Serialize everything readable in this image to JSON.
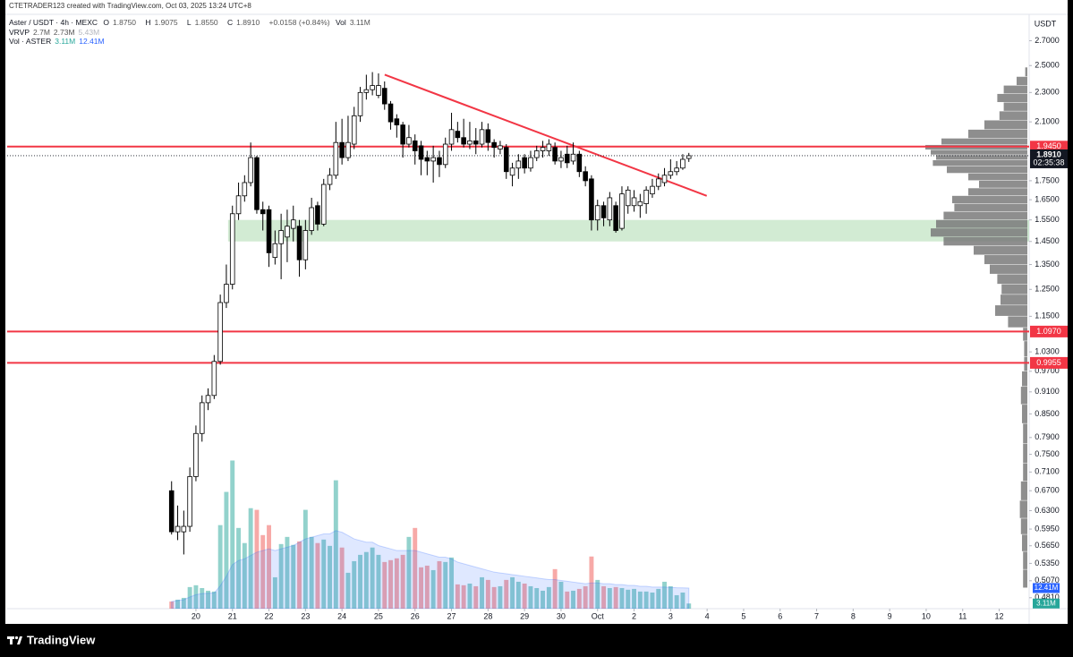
{
  "header": {
    "watermark": "CTETRADER123 created with TradingView.com, Oct 03, 2025 13:24 UTC+8",
    "symbol": "Aster / USDT · 4h · MEXC",
    "ohlc": [
      {
        "key": "O",
        "value": "1.8750"
      },
      {
        "key": "H",
        "value": "1.9075"
      },
      {
        "key": "L",
        "value": "1.8550"
      },
      {
        "key": "C",
        "value": "1.8910"
      }
    ],
    "change": "+0.0158 (+0.84%)",
    "vol_key": "Vol",
    "vol_value": "3.11M",
    "vrvp": {
      "name": "VRVP",
      "values": [
        "2.7M",
        "2.73M",
        "5.43M"
      ]
    },
    "vol_indicator": {
      "name": "Vol · ASTER",
      "values": [
        "3.11M",
        "12.41M"
      ]
    }
  },
  "footer": {
    "brand": "TradingView"
  },
  "chart_data": {
    "type": "candlestick",
    "price_unit": "USDT",
    "log_scale": true,
    "grid": false,
    "xlim": [
      14.83,
      42.82
    ],
    "ylim": [
      0.465,
      2.93
    ],
    "xticks": [
      20,
      21,
      22,
      23,
      24,
      25,
      26,
      27,
      28,
      29,
      30,
      {
        "value": 31,
        "label": "Oct"
      },
      {
        "value": 32,
        "label": "2"
      },
      {
        "value": 33,
        "label": "3"
      },
      {
        "value": 34,
        "label": "4"
      },
      {
        "value": 35,
        "label": "5"
      },
      {
        "value": 36,
        "label": "6"
      },
      {
        "value": 37,
        "label": "7"
      },
      {
        "value": 38,
        "label": "8"
      },
      {
        "value": 39,
        "label": "9"
      },
      {
        "value": 40,
        "label": "10"
      },
      {
        "value": 41,
        "label": "11"
      },
      {
        "value": 42,
        "label": "12"
      }
    ],
    "yticks": [
      {
        "value": 2.7,
        "label": "2.7000"
      },
      {
        "value": 2.5,
        "label": "2.5000"
      },
      {
        "value": 2.3,
        "label": "2.3000"
      },
      {
        "value": 2.1,
        "label": "2.1000"
      },
      {
        "value": 1.75,
        "label": "1.7500"
      },
      {
        "value": 1.65,
        "label": "1.6500"
      },
      {
        "value": 1.55,
        "label": "1.5500"
      },
      {
        "value": 1.45,
        "label": "1.4500"
      },
      {
        "value": 1.35,
        "label": "1.3500"
      },
      {
        "value": 1.25,
        "label": "1.2500"
      },
      {
        "value": 1.15,
        "label": "1.1500"
      },
      {
        "value": 1.03,
        "label": "1.0300"
      },
      {
        "value": 0.97,
        "label": "0.9700"
      },
      {
        "value": 0.91,
        "label": "0.9100"
      },
      {
        "value": 0.85,
        "label": "0.8500"
      },
      {
        "value": 0.79,
        "label": "0.7900"
      },
      {
        "value": 0.75,
        "label": "0.7500"
      },
      {
        "value": 0.71,
        "label": "0.7100"
      },
      {
        "value": 0.67,
        "label": "0.6700"
      },
      {
        "value": 0.63,
        "label": "0.6300"
      },
      {
        "value": 0.595,
        "label": "0.5950"
      },
      {
        "value": 0.565,
        "label": "0.5650"
      },
      {
        "value": 0.535,
        "label": "0.5350"
      },
      {
        "value": 0.507,
        "label": "0.5070"
      },
      {
        "value": 0.481,
        "label": "0.4810"
      }
    ],
    "up_color": "#ffffff",
    "down_color": "#000000",
    "wick_color": "#000000",
    "x": [
      19.333,
      19.5,
      19.667,
      19.833,
      20,
      20.167,
      20.333,
      20.5,
      20.667,
      20.833,
      21,
      21.167,
      21.333,
      21.5,
      21.667,
      21.833,
      22,
      22.167,
      22.333,
      22.5,
      22.667,
      22.833,
      23,
      23.167,
      23.333,
      23.5,
      23.667,
      23.833,
      24,
      24.167,
      24.333,
      24.5,
      24.667,
      24.833,
      25,
      25.167,
      25.333,
      25.5,
      25.667,
      25.833,
      26,
      26.167,
      26.333,
      26.5,
      26.667,
      26.833,
      27,
      27.167,
      27.333,
      27.5,
      27.667,
      27.833,
      28,
      28.167,
      28.333,
      28.5,
      28.667,
      28.833,
      29,
      29.167,
      29.333,
      29.5,
      29.667,
      29.833,
      30,
      30.167,
      30.333,
      30.5,
      30.667,
      30.833,
      31,
      31.167,
      31.333,
      31.5,
      31.667,
      31.833,
      32,
      32.167,
      32.333,
      32.5,
      32.667,
      32.833,
      33,
      33.167,
      33.333,
      33.5
    ],
    "open": [
      0.67,
      0.59,
      0.59,
      0.6,
      0.7,
      0.8,
      0.88,
      0.9,
      1.0,
      1.2,
      1.27,
      1.58,
      1.67,
      1.74,
      1.88,
      1.6,
      1.6,
      1.38,
      1.44,
      1.47,
      1.51,
      1.52,
      1.37,
      1.5,
      1.62,
      1.53,
      1.73,
      1.78,
      1.97,
      1.88,
      1.96,
      2.14,
      2.3,
      2.32,
      2.28,
      2.33,
      2.22,
      2.12,
      2.08,
      1.96,
      1.98,
      1.95,
      1.88,
      1.86,
      1.88,
      1.84,
      1.96,
      2.04,
      2.0,
      1.96,
      1.98,
      1.96,
      2.05,
      1.97,
      1.93,
      1.94,
      1.78,
      1.82,
      1.88,
      1.82,
      1.88,
      1.92,
      1.92,
      1.94,
      1.86,
      1.9,
      1.86,
      1.9,
      1.8,
      1.76,
      1.55,
      1.62,
      1.55,
      1.62,
      1.51,
      1.62,
      1.62,
      1.62,
      1.63,
      1.68,
      1.72,
      1.74,
      1.78,
      1.8,
      1.82,
      1.875
    ],
    "high": [
      0.69,
      0.64,
      0.63,
      0.72,
      0.82,
      0.9,
      0.92,
      1.02,
      1.23,
      1.35,
      1.62,
      1.74,
      1.78,
      1.97,
      1.89,
      1.64,
      1.62,
      1.5,
      1.58,
      1.6,
      1.62,
      1.55,
      1.55,
      1.66,
      1.64,
      1.76,
      1.82,
      2.1,
      2.12,
      2.14,
      2.2,
      2.34,
      2.43,
      2.45,
      2.44,
      2.38,
      2.24,
      2.15,
      2.1,
      2.08,
      2.02,
      1.98,
      1.92,
      1.95,
      1.92,
      2.0,
      2.16,
      2.1,
      2.12,
      2.1,
      2.06,
      2.1,
      2.09,
      1.99,
      1.98,
      1.96,
      1.85,
      1.9,
      1.9,
      1.92,
      1.95,
      1.98,
      1.99,
      1.97,
      1.92,
      1.95,
      1.97,
      1.92,
      1.83,
      1.78,
      1.65,
      1.64,
      1.69,
      1.64,
      1.72,
      1.72,
      1.7,
      1.68,
      1.72,
      1.76,
      1.79,
      1.82,
      1.87,
      1.86,
      1.9,
      1.9075
    ],
    "low": [
      0.585,
      0.575,
      0.55,
      0.59,
      0.69,
      0.78,
      0.86,
      0.89,
      0.99,
      1.18,
      1.25,
      1.55,
      1.64,
      1.72,
      1.58,
      1.5,
      1.34,
      1.35,
      1.29,
      1.36,
      1.45,
      1.3,
      1.33,
      1.48,
      1.5,
      1.52,
      1.7,
      1.76,
      1.84,
      1.86,
      1.93,
      2.1,
      2.25,
      2.28,
      2.26,
      2.18,
      2.05,
      2.0,
      1.88,
      1.94,
      1.84,
      1.78,
      1.78,
      1.74,
      1.77,
      1.82,
      1.92,
      1.97,
      1.94,
      1.93,
      1.9,
      1.94,
      1.92,
      1.88,
      1.9,
      1.76,
      1.72,
      1.76,
      1.79,
      1.8,
      1.86,
      1.88,
      1.89,
      1.84,
      1.82,
      1.82,
      1.84,
      1.77,
      1.72,
      1.5,
      1.5,
      1.52,
      1.52,
      1.49,
      1.5,
      1.58,
      1.59,
      1.56,
      1.58,
      1.66,
      1.7,
      1.72,
      1.76,
      1.78,
      1.81,
      1.855
    ],
    "close": [
      0.59,
      0.6,
      0.6,
      0.7,
      0.8,
      0.88,
      0.9,
      1.0,
      1.2,
      1.27,
      1.58,
      1.67,
      1.74,
      1.88,
      1.6,
      1.58,
      1.4,
      1.44,
      1.5,
      1.52,
      1.55,
      1.37,
      1.5,
      1.61,
      1.53,
      1.73,
      1.78,
      1.97,
      1.88,
      1.97,
      2.14,
      2.3,
      2.32,
      2.35,
      2.35,
      2.22,
      2.1,
      2.08,
      1.96,
      2.0,
      1.92,
      1.87,
      1.86,
      1.88,
      1.84,
      1.96,
      2.05,
      2.0,
      1.96,
      1.98,
      1.96,
      2.05,
      1.97,
      1.94,
      1.95,
      1.8,
      1.82,
      1.86,
      1.82,
      1.88,
      1.92,
      1.94,
      1.96,
      1.86,
      1.88,
      1.85,
      1.9,
      1.8,
      1.75,
      1.55,
      1.62,
      1.56,
      1.66,
      1.5,
      1.68,
      1.7,
      1.66,
      1.64,
      1.7,
      1.72,
      1.76,
      1.78,
      1.8,
      1.82,
      1.87,
      1.891
    ],
    "volume_ylim": [
      0,
      90
    ],
    "volume": [
      4.3,
      5.4,
      6.5,
      13.0,
      14.1,
      12.4,
      10.8,
      10.3,
      50.3,
      70.3,
      89.2,
      48.6,
      39.5,
      60.5,
      59.5,
      44.3,
      50.3,
      18.9,
      38.9,
      43.2,
      38.4,
      40.5,
      59.5,
      43.2,
      39.5,
      41.6,
      37.8,
      77.3,
      36.8,
      21.6,
      28.6,
      32.4,
      34.1,
      36.8,
      32.4,
      28.1,
      29.2,
      30.3,
      32.4,
      43.2,
      48.6,
      24.9,
      25.9,
      23.2,
      28.6,
      28.1,
      30.8,
      14.6,
      14.1,
      15.1,
      13.5,
      18.9,
      17.3,
      13.0,
      13.5,
      17.3,
      18.9,
      16.2,
      15.1,
      13.5,
      12.4,
      10.8,
      13.0,
      23.8,
      16.2,
      10.3,
      10.8,
      11.9,
      13.5,
      31.4,
      17.3,
      13.5,
      12.4,
      13.0,
      12.4,
      11.4,
      11.9,
      10.3,
      10.3,
      9.7,
      11.9,
      16.2,
      13.5,
      8.1,
      9.7,
      3.11
    ],
    "volume_up_color": "rgba(38,166,154,0.5)",
    "volume_down_color": "rgba(239,83,80,0.5)",
    "volume_ma": [
      4.3,
      4.9,
      5.4,
      7.0,
      8.4,
      9.1,
      9.3,
      9.4,
      13.8,
      19.5,
      26.5,
      29,
      30,
      32,
      34,
      35,
      36,
      35,
      36,
      37,
      38,
      40,
      42,
      43,
      44,
      45,
      45,
      47,
      46,
      44,
      42,
      41,
      40,
      40,
      38,
      37,
      36,
      35,
      35,
      35,
      35,
      34,
      33,
      32,
      31,
      31,
      30,
      28,
      27,
      26,
      25,
      24,
      23,
      22,
      21.5,
      21,
      20.5,
      20,
      19.5,
      19,
      18.5,
      18,
      17.5,
      17.5,
      17,
      16.5,
      16,
      15.5,
      15,
      15.5,
      15.5,
      15,
      15,
      14.5,
      14.5,
      14,
      14,
      13.5,
      13.5,
      13,
      13,
      13,
      12.8,
      12.6,
      12.5,
      12.41
    ],
    "volume_ma_color": "#2962ff",
    "volume_labels": [
      {
        "value": 12.41,
        "label": "12.41M",
        "color": "#2962ff"
      },
      {
        "value": 3.11,
        "label": "3.11M",
        "color": "#26a69a"
      }
    ],
    "horizontal_lines": [
      {
        "value": 1.945,
        "label": "1.9450",
        "color": "#f23645"
      },
      {
        "value": 1.097,
        "label": "1.0970",
        "color": "#f23645"
      },
      {
        "value": 0.9955,
        "label": "0.9955",
        "color": "#f23645"
      }
    ],
    "trendline": {
      "x": [
        25.17,
        33.99
      ],
      "y": [
        2.43,
        1.67
      ],
      "color": "#f23645"
    },
    "zone": {
      "x_start": 20.88,
      "y": [
        1.45,
        1.55
      ],
      "color": "rgba(76,175,80,0.25)"
    },
    "last_price": {
      "value": 1.891,
      "label": "1.8910",
      "countdown": "02:35:38",
      "color": "#131722"
    },
    "volume_profile": {
      "color": "#7a7a7a",
      "xlim": [
        0,
        100
      ],
      "prices": [
        2.45,
        2.38,
        2.32,
        2.26,
        2.2,
        2.14,
        2.08,
        2.02,
        1.97,
        1.94,
        1.91,
        1.88,
        1.85,
        1.81,
        1.77,
        1.73,
        1.69,
        1.65,
        1.61,
        1.57,
        1.53,
        1.49,
        1.45,
        1.41,
        1.37,
        1.33,
        1.29,
        1.25,
        1.21,
        1.17,
        1.13,
        1.09,
        1.04,
        0.99,
        0.95,
        0.9,
        0.85,
        0.8,
        0.75,
        0.71,
        0.67,
        0.63,
        0.6,
        0.57,
        0.54,
        0.51
      ],
      "values": [
        2,
        10,
        22,
        28,
        22,
        26,
        40,
        55,
        80,
        95,
        90,
        85,
        88,
        75,
        55,
        45,
        55,
        70,
        68,
        78,
        85,
        90,
        78,
        50,
        40,
        35,
        28,
        24,
        25,
        30,
        18,
        4,
        3,
        3,
        5,
        6,
        5,
        4,
        4,
        4,
        6,
        7,
        6,
        5,
        4,
        4
      ]
    }
  }
}
